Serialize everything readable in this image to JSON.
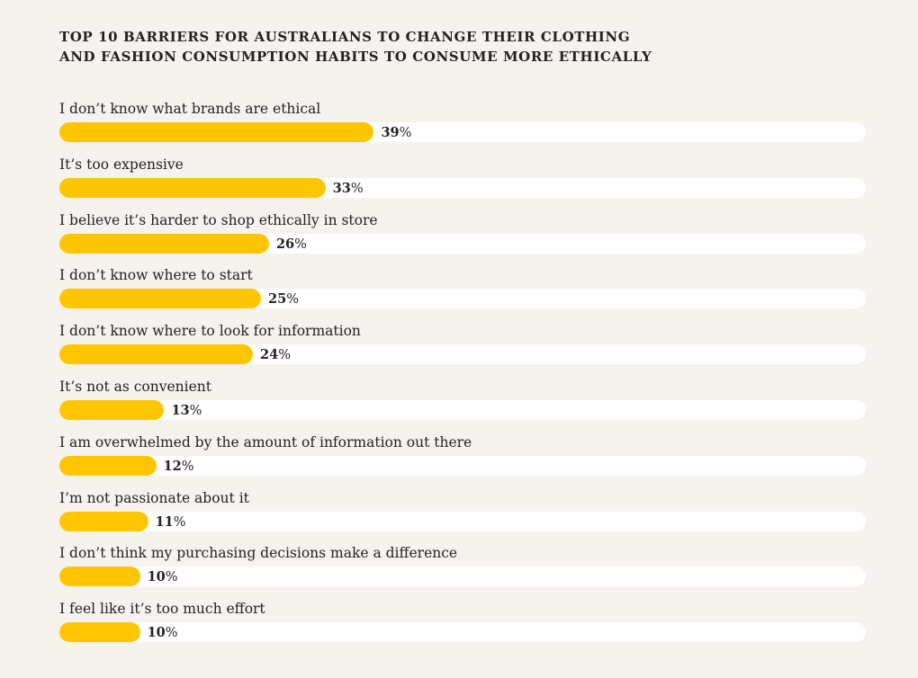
{
  "title_lines": [
    "TOP 10 BARRIERS FOR AUSTRALIANS TO CHANGE THEIR CLOTHING",
    "AND FASHION CONSUMPTION HABITS TO CONSUME MORE ETHICALLY"
  ],
  "colors": {
    "background": "#f6f3ee",
    "bar": "#ffc600",
    "track": "#ffffff",
    "text": "#222222"
  },
  "chart_data": {
    "type": "bar",
    "orientation": "horizontal",
    "title": "TOP 10 BARRIERS FOR AUSTRALIANS TO CHANGE THEIR CLOTHING AND FASHION CONSUMPTION HABITS TO CONSUME MORE ETHICALLY",
    "categories": [
      "I don’t know what brands are ethical",
      "It’s too expensive",
      "I believe it’s harder to shop ethically in store",
      "I don’t know where to start",
      "I don’t know where to look for information",
      "It’s not as convenient",
      "I am overwhelmed by the amount of information out there",
      "I’m not passionate about it",
      "I don’t think my purchasing decisions make a difference",
      "I feel like it’s too much effort"
    ],
    "values": [
      39,
      33,
      26,
      25,
      24,
      13,
      12,
      11,
      10,
      10
    ],
    "unit": "%",
    "xlim": [
      0,
      100
    ],
    "xlabel": "",
    "ylabel": "",
    "grid": false,
    "legend": "none",
    "data_labels": true
  }
}
